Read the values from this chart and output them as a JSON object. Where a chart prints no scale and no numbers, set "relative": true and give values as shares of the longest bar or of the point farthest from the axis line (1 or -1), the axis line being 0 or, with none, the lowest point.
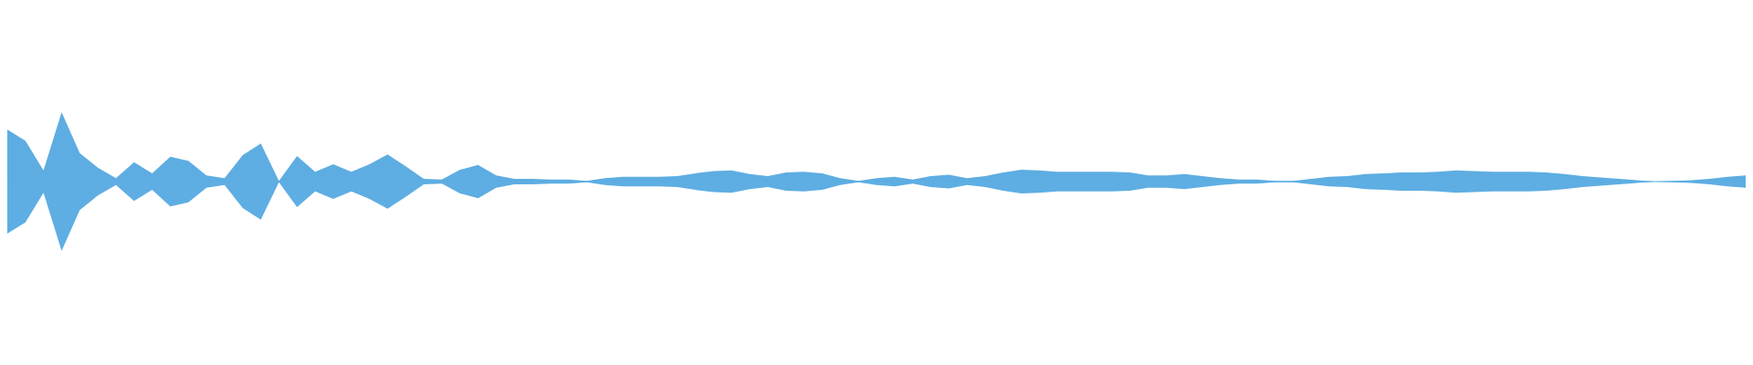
{
  "chart_data": {
    "type": "area",
    "relative": true,
    "ref_lines": [
      {
        "axis": "y",
        "value": 0,
        "color": "#5dade2"
      }
    ],
    "categories": [
      null,
      null,
      null,
      null,
      null,
      null,
      null,
      null,
      null,
      null,
      null,
      null,
      null,
      null,
      null,
      null,
      null,
      null,
      null,
      null,
      null,
      null,
      null,
      null,
      null,
      null,
      null,
      null,
      null,
      null,
      null,
      null,
      null,
      null,
      null,
      null,
      null,
      null,
      null,
      null,
      null,
      null,
      null,
      null,
      null,
      null,
      null,
      null,
      null,
      null,
      null,
      null,
      null,
      null,
      null,
      null,
      null,
      null,
      null,
      null,
      null,
      null,
      null,
      null,
      null,
      null,
      null,
      null,
      null,
      null,
      null,
      null,
      null,
      null,
      null,
      null,
      null,
      null,
      null,
      null,
      null,
      null,
      null,
      null,
      null,
      null,
      null,
      null,
      null,
      null,
      null,
      null,
      null,
      null,
      null,
      null,
      null
    ],
    "series": [
      {
        "color": "#5dade2",
        "values": [
          0.75,
          0.59,
          0.16,
          1,
          0.41,
          0.2,
          0.05,
          0.28,
          0.12,
          0.36,
          0.3,
          0.09,
          0.05,
          0.38,
          0.55,
          0.01,
          0.37,
          0.14,
          0.25,
          0.14,
          0.25,
          0.39,
          0.22,
          0.04,
          0.03,
          0.17,
          0.24,
          0.09,
          0.04,
          0.04,
          0.03,
          0.03,
          0.01,
          0.05,
          0.07,
          0.07,
          0.07,
          0.08,
          0.12,
          0.15,
          0.16,
          0.11,
          0.08,
          0.13,
          0.14,
          0.12,
          0.05,
          0.01,
          0.05,
          0.07,
          0.03,
          0.08,
          0.1,
          0.05,
          0.08,
          0.13,
          0.17,
          0.16,
          0.14,
          0.14,
          0.14,
          0.14,
          0.13,
          0.09,
          0.09,
          0.11,
          0.08,
          0.05,
          0.03,
          0.03,
          0.01,
          0.01,
          0.04,
          0.07,
          0.08,
          0.11,
          0.12,
          0.13,
          0.13,
          0.14,
          0.16,
          0.15,
          0.14,
          0.14,
          0.14,
          0.13,
          0.11,
          0.08,
          0.06,
          0.04,
          0.02,
          0,
          0.01,
          0.02,
          0.04,
          0.07,
          0.09
        ]
      },
      {
        "color": "#5eaee3",
        "values": [
          -0.75,
          -0.59,
          -0.16,
          -1,
          -0.41,
          -0.2,
          -0.05,
          -0.28,
          -0.12,
          -0.36,
          -0.3,
          -0.09,
          -0.05,
          -0.38,
          -0.55,
          -0.01,
          -0.37,
          -0.14,
          -0.25,
          -0.14,
          -0.25,
          -0.39,
          -0.22,
          -0.04,
          -0.03,
          -0.17,
          -0.24,
          -0.09,
          -0.04,
          -0.04,
          -0.03,
          -0.03,
          -0.01,
          -0.05,
          -0.07,
          -0.07,
          -0.07,
          -0.08,
          -0.12,
          -0.15,
          -0.16,
          -0.11,
          -0.08,
          -0.13,
          -0.14,
          -0.12,
          -0.05,
          -0.01,
          -0.05,
          -0.07,
          -0.03,
          -0.08,
          -0.1,
          -0.05,
          -0.08,
          -0.13,
          -0.17,
          -0.16,
          -0.14,
          -0.14,
          -0.14,
          -0.14,
          -0.13,
          -0.09,
          -0.09,
          -0.11,
          -0.08,
          -0.05,
          -0.03,
          -0.03,
          -0.01,
          -0.01,
          -0.04,
          -0.07,
          -0.08,
          -0.11,
          -0.12,
          -0.13,
          -0.13,
          -0.14,
          -0.16,
          -0.15,
          -0.14,
          -0.14,
          -0.14,
          -0.13,
          -0.11,
          -0.08,
          -0.06,
          -0.04,
          -0.02,
          0,
          -0.01,
          -0.02,
          -0.04,
          -0.07,
          -0.09
        ]
      }
    ]
  }
}
